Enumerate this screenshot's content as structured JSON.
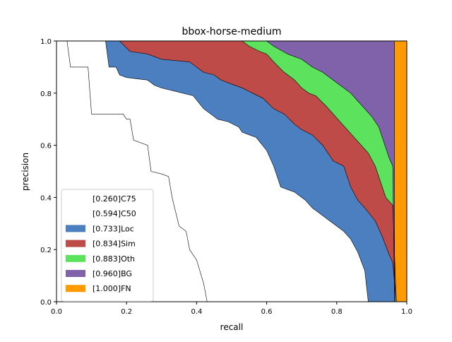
{
  "chart_data": {
    "type": "area",
    "title": "bbox-horse-medium",
    "xlabel": "recall",
    "ylabel": "precision",
    "xlim": [
      0.0,
      1.0
    ],
    "ylim": [
      0.0,
      1.0
    ],
    "xticks": [
      "0.0",
      "0.2",
      "0.4",
      "0.6",
      "0.8",
      "1.0"
    ],
    "yticks": [
      "0.0",
      "0.2",
      "0.4",
      "0.6",
      "0.8",
      "1.0"
    ],
    "grid": false,
    "legend_position": "lower-left",
    "series": [
      {
        "name": "[0.260]C75",
        "color": "#ffffff",
        "points": [
          [
            0.0,
            1.0
          ],
          [
            0.03,
            1.0
          ],
          [
            0.04,
            0.9
          ],
          [
            0.09,
            0.9
          ],
          [
            0.1,
            0.72
          ],
          [
            0.19,
            0.72
          ],
          [
            0.2,
            0.7
          ],
          [
            0.21,
            0.7
          ],
          [
            0.22,
            0.62
          ],
          [
            0.26,
            0.6
          ],
          [
            0.27,
            0.5
          ],
          [
            0.3,
            0.49
          ],
          [
            0.32,
            0.48
          ],
          [
            0.33,
            0.4
          ],
          [
            0.35,
            0.29
          ],
          [
            0.37,
            0.27
          ],
          [
            0.38,
            0.2
          ],
          [
            0.4,
            0.16
          ],
          [
            0.42,
            0.07
          ],
          [
            0.43,
            0.0
          ]
        ]
      },
      {
        "name": "[0.594]C50",
        "color": "#ffffff",
        "points": [
          [
            0.0,
            1.0
          ],
          [
            0.14,
            1.0
          ],
          [
            0.15,
            0.9
          ],
          [
            0.17,
            0.9
          ],
          [
            0.18,
            0.87
          ],
          [
            0.2,
            0.86
          ],
          [
            0.26,
            0.85
          ],
          [
            0.28,
            0.83
          ],
          [
            0.3,
            0.82
          ],
          [
            0.39,
            0.79
          ],
          [
            0.42,
            0.74
          ],
          [
            0.44,
            0.72
          ],
          [
            0.46,
            0.7
          ],
          [
            0.49,
            0.69
          ],
          [
            0.52,
            0.67
          ],
          [
            0.53,
            0.65
          ],
          [
            0.55,
            0.64
          ],
          [
            0.57,
            0.63
          ],
          [
            0.6,
            0.58
          ],
          [
            0.62,
            0.52
          ],
          [
            0.64,
            0.44
          ],
          [
            0.66,
            0.43
          ],
          [
            0.68,
            0.42
          ],
          [
            0.71,
            0.39
          ],
          [
            0.73,
            0.36
          ],
          [
            0.75,
            0.34
          ],
          [
            0.78,
            0.31
          ],
          [
            0.8,
            0.29
          ],
          [
            0.82,
            0.27
          ],
          [
            0.84,
            0.24
          ],
          [
            0.86,
            0.19
          ],
          [
            0.88,
            0.12
          ],
          [
            0.89,
            0.0
          ]
        ]
      },
      {
        "name": "[0.733]Loc",
        "color": "#4c7fbf",
        "points": [
          [
            0.0,
            1.0
          ],
          [
            0.18,
            1.0
          ],
          [
            0.21,
            0.96
          ],
          [
            0.26,
            0.95
          ],
          [
            0.3,
            0.93
          ],
          [
            0.38,
            0.92
          ],
          [
            0.42,
            0.88
          ],
          [
            0.45,
            0.87
          ],
          [
            0.47,
            0.85
          ],
          [
            0.49,
            0.84
          ],
          [
            0.53,
            0.82
          ],
          [
            0.56,
            0.8
          ],
          [
            0.59,
            0.78
          ],
          [
            0.62,
            0.74
          ],
          [
            0.65,
            0.72
          ],
          [
            0.68,
            0.68
          ],
          [
            0.7,
            0.66
          ],
          [
            0.73,
            0.64
          ],
          [
            0.76,
            0.6
          ],
          [
            0.79,
            0.54
          ],
          [
            0.82,
            0.52
          ],
          [
            0.84,
            0.44
          ],
          [
            0.86,
            0.39
          ],
          [
            0.88,
            0.36
          ],
          [
            0.91,
            0.31
          ],
          [
            0.93,
            0.25
          ],
          [
            0.95,
            0.18
          ],
          [
            0.96,
            0.15
          ],
          [
            0.97,
            0.0
          ]
        ]
      },
      {
        "name": "[0.834]Sim",
        "color": "#be4b48",
        "points": [
          [
            0.0,
            1.0
          ],
          [
            0.53,
            1.0
          ],
          [
            0.55,
            0.98
          ],
          [
            0.58,
            0.96
          ],
          [
            0.6,
            0.95
          ],
          [
            0.62,
            0.92
          ],
          [
            0.65,
            0.88
          ],
          [
            0.68,
            0.85
          ],
          [
            0.7,
            0.82
          ],
          [
            0.72,
            0.8
          ],
          [
            0.74,
            0.79
          ],
          [
            0.77,
            0.75
          ],
          [
            0.79,
            0.72
          ],
          [
            0.81,
            0.69
          ],
          [
            0.83,
            0.66
          ],
          [
            0.85,
            0.63
          ],
          [
            0.87,
            0.6
          ],
          [
            0.89,
            0.57
          ],
          [
            0.91,
            0.52
          ],
          [
            0.92,
            0.48
          ],
          [
            0.93,
            0.44
          ],
          [
            0.94,
            0.4
          ],
          [
            0.96,
            0.37
          ],
          [
            0.97,
            0.0
          ]
        ]
      },
      {
        "name": "[0.883]Oth",
        "color": "#5ce25c",
        "points": [
          [
            0.0,
            1.0
          ],
          [
            0.6,
            1.0
          ],
          [
            0.62,
            0.98
          ],
          [
            0.66,
            0.95
          ],
          [
            0.7,
            0.93
          ],
          [
            0.73,
            0.9
          ],
          [
            0.76,
            0.88
          ],
          [
            0.79,
            0.85
          ],
          [
            0.81,
            0.83
          ],
          [
            0.84,
            0.8
          ],
          [
            0.86,
            0.77
          ],
          [
            0.88,
            0.74
          ],
          [
            0.9,
            0.71
          ],
          [
            0.92,
            0.67
          ],
          [
            0.93,
            0.63
          ],
          [
            0.95,
            0.55
          ],
          [
            0.96,
            0.52
          ],
          [
            0.965,
            0.0
          ]
        ]
      },
      {
        "name": "[0.960]BG",
        "color": "#7f62a9",
        "points": [
          [
            0.0,
            1.0
          ],
          [
            0.965,
            1.0
          ],
          [
            0.965,
            0.0
          ]
        ]
      },
      {
        "name": "[1.000]FN",
        "color": "#ff9a00",
        "points": [
          [
            0.0,
            1.0
          ],
          [
            1.0,
            1.0
          ],
          [
            1.0,
            0.0
          ]
        ]
      }
    ]
  }
}
